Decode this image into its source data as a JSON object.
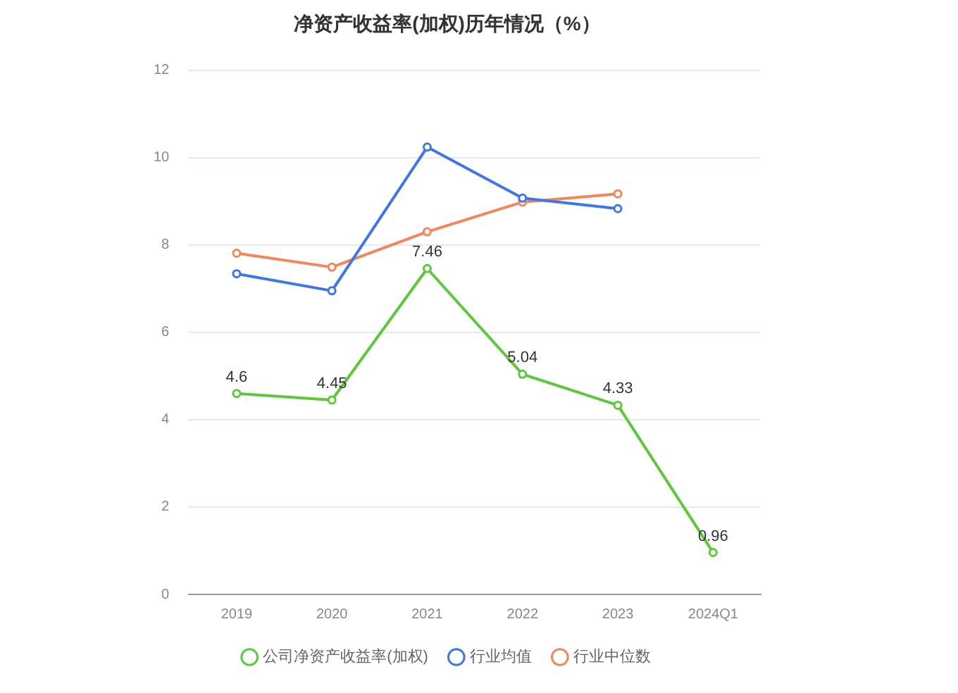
{
  "chart_data": {
    "type": "line",
    "title": "净资产收益率(加权)历年情况（%）",
    "categories": [
      "2019",
      "2020",
      "2021",
      "2022",
      "2023",
      "2024Q1"
    ],
    "series": [
      {
        "name": "公司净资产收益率(加权)",
        "color": "#5cc93a",
        "values": [
          4.6,
          4.45,
          7.46,
          5.04,
          4.33,
          0.96
        ],
        "value_labels": [
          "4.6",
          "4.45",
          "7.46",
          "5.04",
          "4.33",
          "0.96"
        ]
      },
      {
        "name": "行业均值",
        "color": "#3f76e8",
        "values": [
          7.34,
          6.95,
          10.24,
          9.07,
          8.83,
          null
        ]
      },
      {
        "name": "行业中位数",
        "color": "#f7855a",
        "values": [
          7.81,
          7.49,
          8.3,
          8.98,
          9.17,
          null
        ]
      }
    ],
    "ylim": [
      0,
      12
    ],
    "yticks": [
      0,
      2,
      4,
      6,
      8,
      10,
      12
    ],
    "grid": "y",
    "legend": "bottom",
    "marker": "circle",
    "line_style": "solid"
  }
}
